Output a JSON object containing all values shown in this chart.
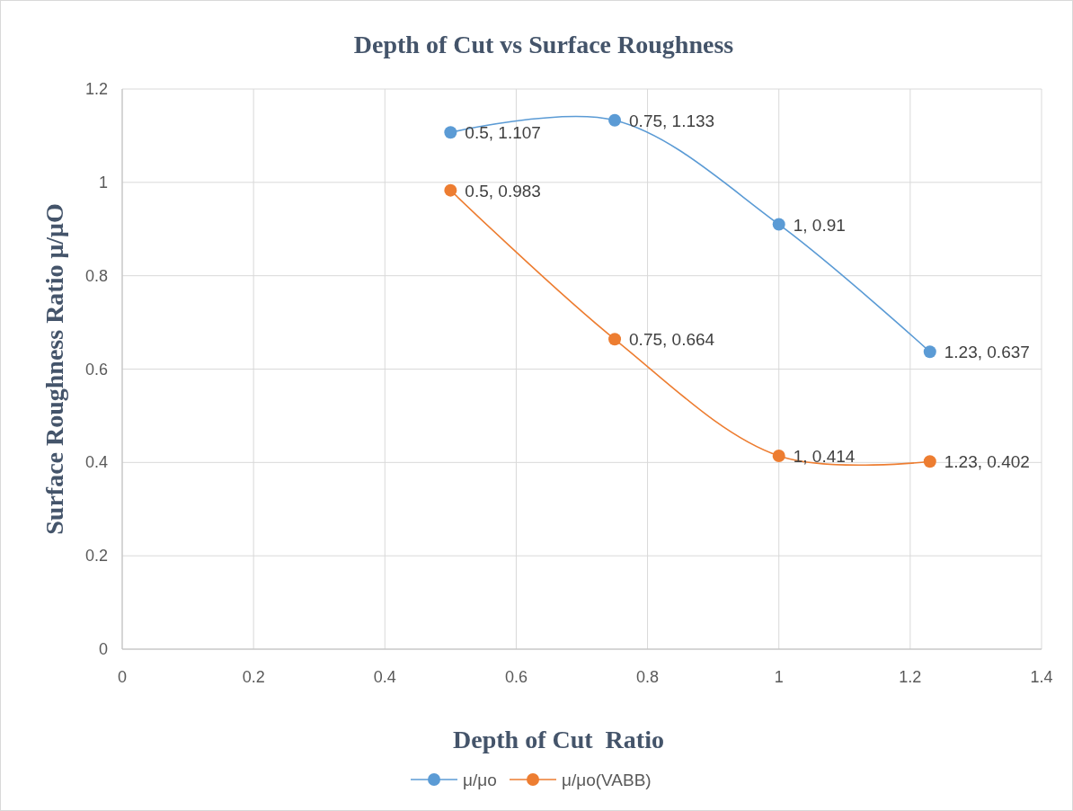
{
  "chart_data": {
    "type": "line",
    "title": "Depth of Cut vs Surface Roughness",
    "xlabel": "Depth of Cut  Ratio",
    "ylabel": "Surface Roughness Ratio μ/μO",
    "x": [
      0.5,
      0.75,
      1,
      1.23
    ],
    "series": [
      {
        "name": "μ/μo",
        "color": "#5b9bd5",
        "values": [
          1.107,
          1.133,
          0.91,
          0.637
        ],
        "value_labels": [
          "0.5, 1.107",
          "0.75, 1.133",
          "1, 0.91",
          "1.23, 0.637"
        ]
      },
      {
        "name": "μ/μo(VABB)",
        "color": "#ed7d31",
        "values": [
          0.983,
          0.664,
          0.414,
          0.402
        ],
        "value_labels": [
          "0.5, 0.983",
          "0.75, 0.664",
          "1, 0.414",
          "1.23, 0.402"
        ]
      }
    ],
    "xlim": [
      0,
      1.4
    ],
    "xticks": [
      0,
      0.2,
      0.4,
      0.6,
      0.8,
      1,
      1.2,
      1.4
    ],
    "ylim": [
      0,
      1.2
    ],
    "yticks": [
      0,
      0.2,
      0.4,
      0.6,
      0.8,
      1,
      1.2
    ],
    "grid": true,
    "legend": "bottom",
    "marker": "circle",
    "line_style": "solid"
  }
}
